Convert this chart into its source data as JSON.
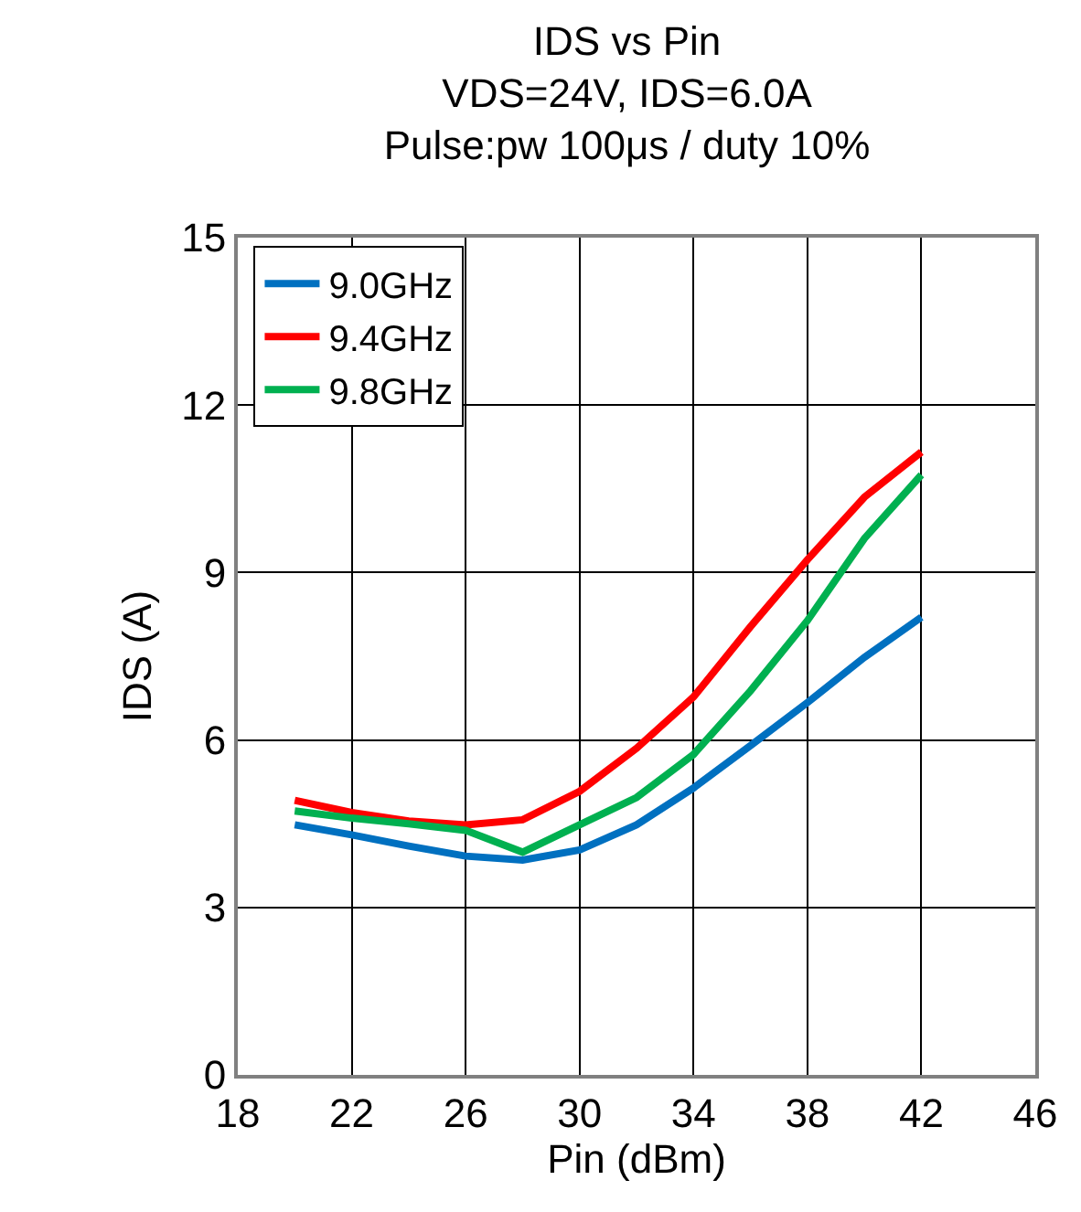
{
  "chart_data": {
    "type": "line",
    "title": "IDS vs Pin\nVDS=24V, IDS=6.0A\nPulse:pw 100μs / duty 10%",
    "xlabel": "Pin (dBm)",
    "ylabel": "IDS (A)",
    "x": [
      20,
      22,
      24,
      26,
      28,
      30,
      32,
      34,
      36,
      38,
      40,
      42
    ],
    "series": [
      {
        "name": "9.0GHz",
        "color": "#0070c0",
        "values": [
          4.48,
          4.3,
          4.1,
          3.92,
          3.85,
          4.03,
          4.48,
          5.14,
          5.9,
          6.67,
          7.48,
          8.2
        ]
      },
      {
        "name": "9.4GHz",
        "color": "#ff0000",
        "values": [
          4.92,
          4.7,
          4.55,
          4.48,
          4.57,
          5.08,
          5.85,
          6.77,
          8.03,
          9.23,
          10.35,
          11.16
        ]
      },
      {
        "name": "9.8GHz",
        "color": "#00b050",
        "values": [
          4.73,
          4.6,
          4.5,
          4.38,
          3.99,
          4.48,
          4.97,
          5.74,
          6.88,
          8.14,
          9.61,
          10.75
        ]
      }
    ],
    "xlim": [
      18,
      46
    ],
    "xticks": [
      18,
      22,
      26,
      30,
      34,
      38,
      42,
      46
    ],
    "ylim": [
      0,
      15
    ],
    "yticks": [
      0,
      3,
      6,
      9,
      12,
      15
    ],
    "grid": true,
    "legend": "top left",
    "marker": "none",
    "line_style": "solid"
  }
}
